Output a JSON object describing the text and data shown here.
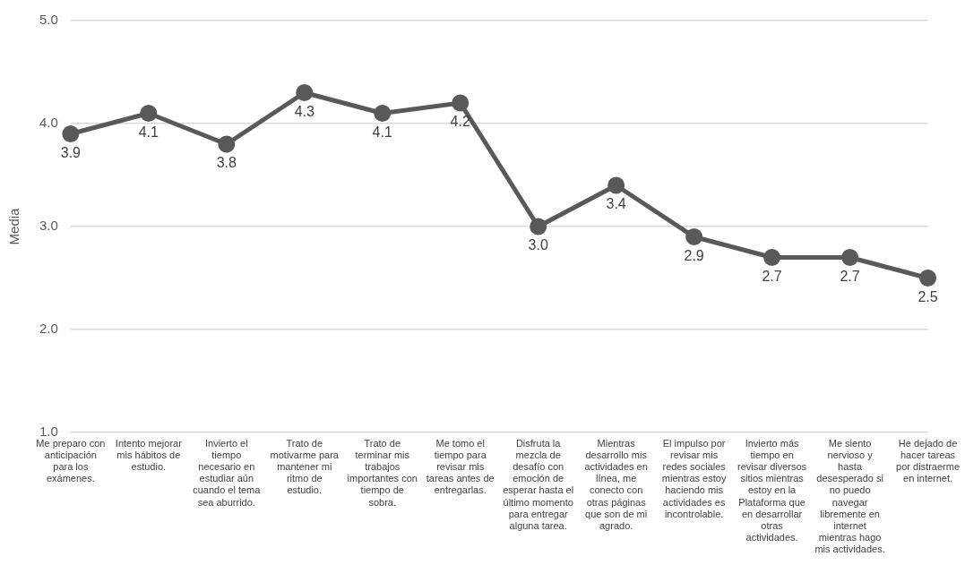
{
  "chart_data": {
    "type": "line",
    "ylabel": "Media",
    "categories": [
      "Me preparo con anticipación para los exámenes.",
      "Intento mejorar mis hábitos de estudio.",
      "Invierto el tiempo necesario en estudiar aún cuando el tema sea aburrido.",
      "Trato de motivarme para mantener mi ritmo de estudio.",
      "Trato de terminar mis trabajos importantes con tiempo de sobra.",
      "Me tomo el tiempo para revisar mis tareas antes de entregarlas.",
      "Disfruta la mezcla de desafío con emoción de esperar hasta el último momento para entregar alguna tarea.",
      "Mientras desarrollo mis actividades en línea, me conecto con otras páginas que son de mi agrado.",
      "El impulso por revisar mis redes sociales mientras estoy haciendo mis actividades es incontrolable.",
      "Invierto más tiempo en revisar diversos sitios mientras estoy en la Plataforma que en desarrollar otras actividades.",
      "Me siento nervioso y hasta desesperado si no puedo navegar libremente en internet mientras hago mis actividades.",
      "He dejado de hacer tareas por distraerme en internet."
    ],
    "series": [
      {
        "color": "#595959",
        "values": [
          3.9,
          4.1,
          3.8,
          4.3,
          4.1,
          4.2,
          3.0,
          3.4,
          2.9,
          2.7,
          2.7,
          2.5
        ]
      }
    ],
    "value_labels": [
      "3.9",
      "4.1",
      "3.8",
      "4.3",
      "4.1",
      "4.2",
      "3.0",
      "3.4",
      "2.9",
      "2.7",
      "2.7",
      "2.5"
    ],
    "ylim": [
      1,
      5
    ],
    "yticks": [
      {
        "value": 1,
        "label": "1.0"
      },
      {
        "value": 2,
        "label": "2.0"
      },
      {
        "value": 3,
        "label": "3.0"
      },
      {
        "value": 4,
        "label": "4.0"
      },
      {
        "value": 5,
        "label": "5.0"
      }
    ],
    "grid": "y",
    "legend": false,
    "marker": "circle",
    "line_style": "solid"
  }
}
